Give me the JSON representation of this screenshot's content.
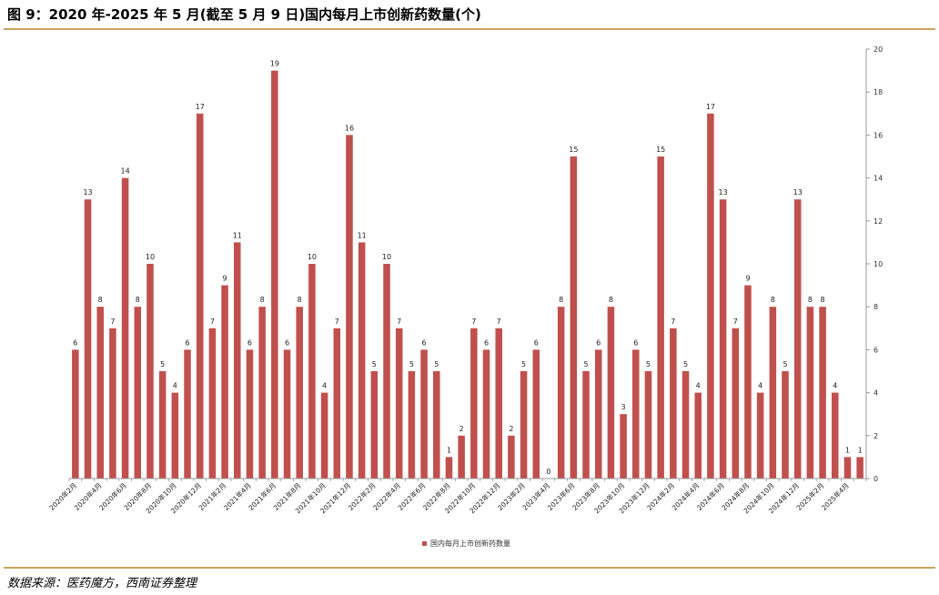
{
  "title": "图 9：2020 年-2025 年 5 月(截至 5 月 9 日)国内每月上市创新药数量(个)",
  "source": "数据来源：医药魔方，西南证券整理",
  "colors": {
    "bar": "#c0504d",
    "rule": "#c9a45b",
    "axis": "#999999"
  },
  "chart_data": {
    "type": "bar",
    "categories": [
      "2020年2月",
      "2020年3月",
      "2020年4月",
      "2020年5月",
      "2020年6月",
      "2020年7月",
      "2020年8月",
      "2020年9月",
      "2020年10月",
      "2020年11月",
      "2020年12月",
      "2021年1月",
      "2021年2月",
      "2021年3月",
      "2021年4月",
      "2021年5月",
      "2021年6月",
      "2021年7月",
      "2021年8月",
      "2021年9月",
      "2021年10月",
      "2021年11月",
      "2021年12月",
      "2022年1月",
      "2022年2月",
      "2022年3月",
      "2022年4月",
      "2022年5月",
      "2022年6月",
      "2022年7月",
      "2022年8月",
      "2022年9月",
      "2022年10月",
      "2022年11月",
      "2022年12月",
      "2023年1月",
      "2023年2月",
      "2023年3月",
      "2023年4月",
      "2023年5月",
      "2023年6月",
      "2023年7月",
      "2023年8月",
      "2023年9月",
      "2023年10月",
      "2023年11月",
      "2023年12月",
      "2024年1月",
      "2024年2月",
      "2024年3月",
      "2024年4月",
      "2024年5月",
      "2024年6月",
      "2024年7月",
      "2024年8月",
      "2024年9月",
      "2024年10月",
      "2024年11月",
      "2024年12月",
      "2025年1月",
      "2025年2月",
      "2025年3月",
      "2025年4月",
      "2025年5月"
    ],
    "tick_labels": [
      "2020年2月",
      "2020年4月",
      "2020年6月",
      "2020年8月",
      "2020年10月",
      "2020年12月",
      "2021年2月",
      "2021年4月",
      "2021年6月",
      "2021年8月",
      "2021年10月",
      "2021年12月",
      "2022年2月",
      "2022年4月",
      "2022年6月",
      "2022年8月",
      "2022年10月",
      "2022年12月",
      "2023年2月",
      "2023年4月",
      "2023年6月",
      "2023年8月",
      "2023年10月",
      "2023年12月",
      "2024年2月",
      "2024年4月",
      "2024年6月",
      "2024年8月",
      "2024年10月",
      "2024年12月",
      "2025年2月",
      "2025年4月"
    ],
    "series": [
      {
        "name": "国内每月上市创新药数量",
        "values": [
          6,
          13,
          8,
          7,
          14,
          8,
          10,
          5,
          4,
          6,
          17,
          7,
          9,
          11,
          6,
          8,
          19,
          6,
          8,
          10,
          4,
          7,
          16,
          11,
          5,
          10,
          7,
          5,
          6,
          5,
          1,
          2,
          7,
          6,
          7,
          2,
          5,
          6,
          0,
          8,
          15,
          5,
          6,
          8,
          3,
          6,
          5,
          15,
          7,
          5,
          4,
          17,
          13,
          7,
          9,
          4,
          8,
          5,
          13,
          8,
          8,
          4,
          1,
          1
        ]
      }
    ],
    "y_ticks": [
      "0",
      "2",
      "4",
      "6",
      "8",
      "10",
      "12",
      "14",
      "16",
      "18",
      "20"
    ],
    "ylim": [
      0,
      20
    ],
    "y_axis_side": "right",
    "legend_position": "bottom",
    "grid": false
  }
}
